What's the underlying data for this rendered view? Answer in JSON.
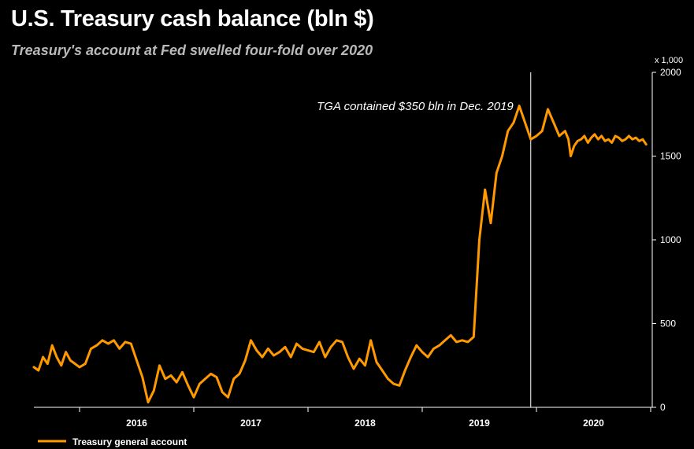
{
  "chart_data": {
    "type": "line",
    "title": "U.S. Treasury cash balance (bln $)",
    "subtitle": "Treasury's account at Fed swelled four-fold over 2020",
    "unit_label": "x 1,000",
    "y_ticks": [
      "0",
      "500",
      "1000",
      "1500",
      "2000"
    ],
    "ylim": [
      0,
      2000
    ],
    "xlim": [
      2015.6,
      2021.0
    ],
    "x_tick_labels": [
      {
        "label": "2016",
        "x": 2016.5
      },
      {
        "label": "2017",
        "x": 2017.5
      },
      {
        "label": "2018",
        "x": 2018.5
      },
      {
        "label": "2019",
        "x": 2019.5
      },
      {
        "label": "2020",
        "x": 2020.5
      }
    ],
    "x_year_boundaries": [
      2016,
      2017,
      2018,
      2019,
      2020,
      2021
    ],
    "annotation": {
      "text": "TGA contained $350 bln in Dec. 2019",
      "x": 2019.95
    },
    "legend": [
      {
        "name": "Treasury general account",
        "color": "#ff9900"
      }
    ],
    "series": [
      {
        "name": "Treasury general account",
        "color": "#ff9900",
        "x": [
          2015.6,
          2015.64,
          2015.68,
          2015.72,
          2015.76,
          2015.8,
          2015.84,
          2015.88,
          2015.92,
          2015.96,
          2016.0,
          2016.05,
          2016.1,
          2016.15,
          2016.2,
          2016.25,
          2016.3,
          2016.35,
          2016.4,
          2016.45,
          2016.5,
          2016.55,
          2016.6,
          2016.65,
          2016.7,
          2016.75,
          2016.8,
          2016.85,
          2016.9,
          2016.95,
          2017.0,
          2017.05,
          2017.1,
          2017.15,
          2017.2,
          2017.25,
          2017.3,
          2017.35,
          2017.4,
          2017.45,
          2017.5,
          2017.55,
          2017.6,
          2017.65,
          2017.7,
          2017.75,
          2017.8,
          2017.85,
          2017.9,
          2017.95,
          2018.0,
          2018.05,
          2018.1,
          2018.15,
          2018.2,
          2018.25,
          2018.3,
          2018.35,
          2018.4,
          2018.45,
          2018.5,
          2018.55,
          2018.6,
          2018.65,
          2018.7,
          2018.75,
          2018.8,
          2018.85,
          2018.9,
          2018.95,
          2019.0,
          2019.05,
          2019.1,
          2019.15,
          2019.2,
          2019.25,
          2019.3,
          2019.35,
          2019.4,
          2019.45,
          2019.5,
          2019.55,
          2019.6,
          2019.65,
          2019.7,
          2019.75,
          2019.8,
          2019.85,
          2019.9,
          2019.95,
          2020.0,
          2020.05,
          2020.1,
          2020.15,
          2020.2,
          2020.25,
          2020.28,
          2020.3,
          2020.33,
          2020.36,
          2020.39,
          2020.42,
          2020.45,
          2020.48,
          2020.51,
          2020.54,
          2020.57,
          2020.6,
          2020.63,
          2020.66,
          2020.69,
          2020.72,
          2020.75,
          2020.78,
          2020.81,
          2020.84,
          2020.87,
          2020.9,
          2020.93,
          2020.96
        ],
        "y": [
          240,
          220,
          300,
          260,
          370,
          300,
          250,
          330,
          280,
          260,
          240,
          260,
          350,
          370,
          400,
          380,
          400,
          350,
          390,
          380,
          280,
          180,
          30,
          100,
          250,
          170,
          190,
          150,
          210,
          130,
          60,
          140,
          170,
          200,
          180,
          90,
          60,
          170,
          200,
          280,
          400,
          340,
          300,
          350,
          310,
          330,
          360,
          300,
          380,
          350,
          340,
          330,
          390,
          300,
          360,
          400,
          390,
          300,
          230,
          290,
          250,
          400,
          270,
          220,
          170,
          140,
          130,
          220,
          300,
          370,
          330,
          300,
          350,
          370,
          400,
          430,
          390,
          400,
          390,
          420,
          1000,
          1300,
          1100,
          1400,
          1500,
          1650,
          1700,
          1800,
          1700,
          1600,
          1620,
          1650,
          1780,
          1700,
          1620,
          1650,
          1600,
          1500,
          1560,
          1590,
          1600,
          1620,
          1580,
          1610,
          1630,
          1600,
          1620,
          1590,
          1600,
          1580,
          1620,
          1610,
          1590,
          1600,
          1620,
          1600,
          1610,
          1590,
          1600,
          1570
        ]
      }
    ]
  }
}
